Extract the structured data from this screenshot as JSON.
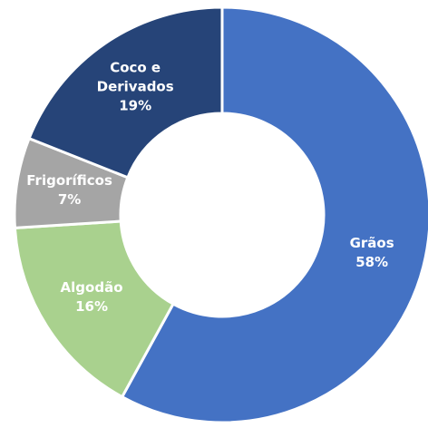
{
  "chart_data": {
    "type": "donut",
    "categories": [
      "Grãos",
      "Algodão",
      "Frigoríficos",
      "Coco e Derivados"
    ],
    "values": [
      58,
      16,
      7,
      19
    ],
    "value_labels": [
      "58%",
      "16%",
      "7%",
      "19%"
    ],
    "colors": [
      "#4472c4",
      "#a9d18e",
      "#a5a5a5",
      "#264478"
    ]
  }
}
